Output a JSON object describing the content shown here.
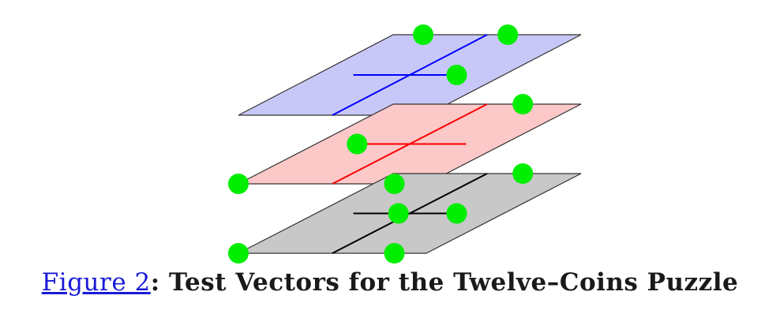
{
  "caption": {
    "link_text": "Figure 2",
    "separator": ":",
    "title": " Test Vectors for the Twelve–Coins Puzzle"
  },
  "colors": {
    "link": "#1a1ad6",
    "caption_text": "#1a1a1a",
    "coin": "#00ee00",
    "outline": "#333333"
  },
  "layers": [
    {
      "name": "top",
      "fill": "#c8c8f8",
      "line_color": "#0000ff",
      "coins": [
        [
          0.16,
          0
        ],
        [
          0.61,
          0
        ],
        [
          0.75,
          0.5
        ]
      ]
    },
    {
      "name": "middle",
      "fill": "#fcc8c8",
      "line_color": "#ff0000",
      "coins": [
        [
          0.69,
          0
        ],
        [
          0.22,
          0.5
        ],
        [
          0,
          1
        ],
        [
          0.83,
          1
        ]
      ]
    },
    {
      "name": "bottom",
      "fill": "#c8c8c8",
      "line_color": "#000000",
      "coins": [
        [
          0.69,
          0
        ],
        [
          0.75,
          0.5
        ],
        [
          0.44,
          0.5
        ],
        [
          0,
          1
        ],
        [
          0.83,
          1
        ]
      ]
    }
  ]
}
